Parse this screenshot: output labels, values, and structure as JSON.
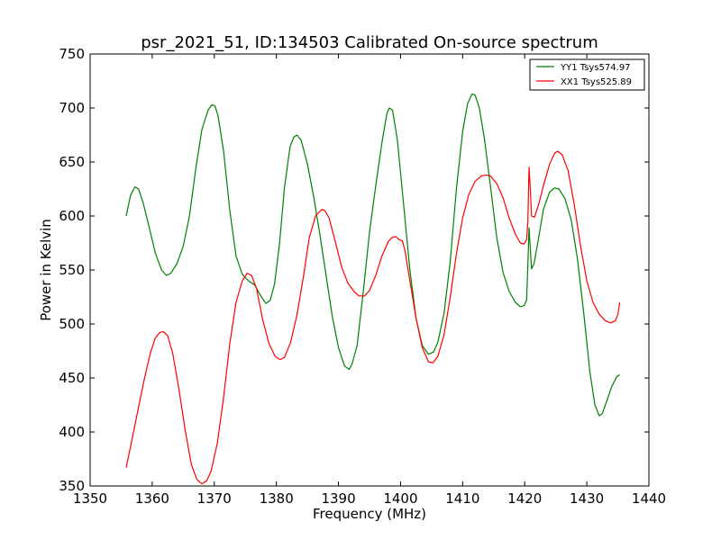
{
  "chart_data": {
    "type": "line",
    "title": "psr_2021_51, ID:134503 Calibrated On-source spectrum",
    "xlabel": "Frequency (MHz)",
    "ylabel": "Power in Kelvin",
    "xlim": [
      1350,
      1440
    ],
    "ylim": [
      350,
      750
    ],
    "xticks": [
      "1350",
      "1360",
      "1370",
      "1380",
      "1390",
      "1400",
      "1410",
      "1420",
      "1430",
      "1440"
    ],
    "yticks": [
      "350",
      "400",
      "450",
      "500",
      "550",
      "600",
      "650",
      "700",
      "750"
    ],
    "grid": false,
    "legend_position": "top-right",
    "series": [
      {
        "name": "YY1 Tsys574.97",
        "color": "#008000",
        "points": [
          [
            1355.8,
            600
          ],
          [
            1356.5,
            619
          ],
          [
            1357.2,
            627
          ],
          [
            1357.8,
            625
          ],
          [
            1358.5,
            613
          ],
          [
            1359.5,
            590
          ],
          [
            1360.5,
            566
          ],
          [
            1361.5,
            550
          ],
          [
            1362.3,
            545
          ],
          [
            1363,
            547
          ],
          [
            1364,
            556
          ],
          [
            1365,
            572
          ],
          [
            1366,
            600
          ],
          [
            1367,
            643
          ],
          [
            1368,
            680
          ],
          [
            1369,
            698
          ],
          [
            1369.6,
            703
          ],
          [
            1370.1,
            702
          ],
          [
            1370.6,
            693
          ],
          [
            1371.5,
            660
          ],
          [
            1372.5,
            605
          ],
          [
            1373.5,
            563
          ],
          [
            1374.5,
            546
          ],
          [
            1375.5,
            540
          ],
          [
            1376.5,
            536
          ],
          [
            1377.5,
            526
          ],
          [
            1378.3,
            519
          ],
          [
            1379,
            522
          ],
          [
            1379.7,
            537
          ],
          [
            1380.5,
            574
          ],
          [
            1381.3,
            626
          ],
          [
            1382.2,
            664
          ],
          [
            1382.8,
            673
          ],
          [
            1383.3,
            675
          ],
          [
            1384,
            670
          ],
          [
            1385,
            648
          ],
          [
            1386,
            618
          ],
          [
            1387,
            583
          ],
          [
            1388,
            545
          ],
          [
            1389,
            507
          ],
          [
            1390,
            478
          ],
          [
            1391,
            461
          ],
          [
            1391.7,
            458
          ],
          [
            1392.2,
            463
          ],
          [
            1393,
            480
          ],
          [
            1394,
            530
          ],
          [
            1395,
            585
          ],
          [
            1396,
            628
          ],
          [
            1397,
            668
          ],
          [
            1397.8,
            695
          ],
          [
            1398.2,
            700
          ],
          [
            1398.7,
            698
          ],
          [
            1399.5,
            670
          ],
          [
            1400.5,
            610
          ],
          [
            1401.5,
            550
          ],
          [
            1402.5,
            505
          ],
          [
            1403.5,
            480
          ],
          [
            1404.5,
            472
          ],
          [
            1405.3,
            474
          ],
          [
            1406,
            483
          ],
          [
            1407,
            510
          ],
          [
            1408,
            558
          ],
          [
            1409,
            625
          ],
          [
            1410,
            678
          ],
          [
            1410.8,
            704
          ],
          [
            1411.5,
            713
          ],
          [
            1412,
            712
          ],
          [
            1412.7,
            700
          ],
          [
            1413.5,
            672
          ],
          [
            1414.5,
            627
          ],
          [
            1415.5,
            580
          ],
          [
            1416.5,
            548
          ],
          [
            1417.5,
            530
          ],
          [
            1418.5,
            520
          ],
          [
            1419.3,
            516
          ],
          [
            1419.9,
            517
          ],
          [
            1420.3,
            522
          ],
          [
            1420.5,
            555
          ],
          [
            1420.7,
            589
          ],
          [
            1420.9,
            570
          ],
          [
            1421.1,
            551
          ],
          [
            1421.5,
            556
          ],
          [
            1422.3,
            582
          ],
          [
            1423,
            606
          ],
          [
            1424,
            622
          ],
          [
            1424.8,
            626
          ],
          [
            1425.5,
            625
          ],
          [
            1426.5,
            616
          ],
          [
            1427.5,
            596
          ],
          [
            1428.5,
            560
          ],
          [
            1429.5,
            510
          ],
          [
            1430.5,
            455
          ],
          [
            1431.3,
            425
          ],
          [
            1432,
            415
          ],
          [
            1432.5,
            417
          ],
          [
            1433.3,
            430
          ],
          [
            1434,
            442
          ],
          [
            1434.8,
            451
          ],
          [
            1435.3,
            453
          ]
        ]
      },
      {
        "name": "XX1 Tsys525.89",
        "color": "#ff0000",
        "points": [
          [
            1355.8,
            367
          ],
          [
            1356.7,
            392
          ],
          [
            1357.7,
            420
          ],
          [
            1358.7,
            448
          ],
          [
            1359.7,
            473
          ],
          [
            1360.5,
            487
          ],
          [
            1361.2,
            492
          ],
          [
            1361.8,
            493
          ],
          [
            1362.5,
            489
          ],
          [
            1363.3,
            473
          ],
          [
            1364.3,
            440
          ],
          [
            1365.3,
            402
          ],
          [
            1366.3,
            370
          ],
          [
            1367.2,
            356
          ],
          [
            1368,
            352
          ],
          [
            1368.8,
            355
          ],
          [
            1369.5,
            364
          ],
          [
            1370.5,
            390
          ],
          [
            1371.5,
            432
          ],
          [
            1372.5,
            482
          ],
          [
            1373.5,
            520
          ],
          [
            1374.5,
            540
          ],
          [
            1375.3,
            547
          ],
          [
            1376,
            545
          ],
          [
            1376.8,
            533
          ],
          [
            1377.8,
            504
          ],
          [
            1378.8,
            482
          ],
          [
            1379.8,
            470
          ],
          [
            1380.6,
            467
          ],
          [
            1381.3,
            469
          ],
          [
            1382.3,
            483
          ],
          [
            1383.3,
            508
          ],
          [
            1384.3,
            542
          ],
          [
            1385.3,
            580
          ],
          [
            1386.3,
            600
          ],
          [
            1387.3,
            606
          ],
          [
            1387.8,
            605
          ],
          [
            1388.5,
            598
          ],
          [
            1389.5,
            576
          ],
          [
            1390.5,
            553
          ],
          [
            1391.5,
            538
          ],
          [
            1392.5,
            530
          ],
          [
            1393.3,
            526
          ],
          [
            1394.2,
            526
          ],
          [
            1395,
            531
          ],
          [
            1396,
            545
          ],
          [
            1397,
            563
          ],
          [
            1398,
            576
          ],
          [
            1398.6,
            580
          ],
          [
            1399.2,
            581
          ],
          [
            1399.8,
            578
          ],
          [
            1400.3,
            577
          ],
          [
            1400.7,
            568
          ],
          [
            1401.5,
            540
          ],
          [
            1402.5,
            505
          ],
          [
            1403.5,
            478
          ],
          [
            1404.5,
            465
          ],
          [
            1405.2,
            464
          ],
          [
            1406,
            470
          ],
          [
            1407,
            490
          ],
          [
            1408,
            525
          ],
          [
            1409,
            565
          ],
          [
            1410,
            598
          ],
          [
            1411,
            620
          ],
          [
            1412,
            632
          ],
          [
            1413,
            637
          ],
          [
            1413.8,
            638
          ],
          [
            1414.5,
            637
          ],
          [
            1415.5,
            630
          ],
          [
            1416.5,
            617
          ],
          [
            1417.5,
            598
          ],
          [
            1418.5,
            583
          ],
          [
            1419.3,
            575
          ],
          [
            1419.9,
            574
          ],
          [
            1420.3,
            578
          ],
          [
            1420.5,
            595
          ],
          [
            1420.7,
            645
          ],
          [
            1420.9,
            625
          ],
          [
            1421.1,
            600
          ],
          [
            1421.6,
            599
          ],
          [
            1422.3,
            612
          ],
          [
            1423,
            628
          ],
          [
            1424,
            648
          ],
          [
            1424.8,
            658
          ],
          [
            1425.3,
            660
          ],
          [
            1426,
            657
          ],
          [
            1427,
            642
          ],
          [
            1428,
            610
          ],
          [
            1429,
            572
          ],
          [
            1430,
            540
          ],
          [
            1431,
            520
          ],
          [
            1432,
            509
          ],
          [
            1433,
            503
          ],
          [
            1433.8,
            501
          ],
          [
            1434.6,
            503
          ],
          [
            1435,
            509
          ],
          [
            1435.3,
            520
          ]
        ]
      }
    ]
  }
}
